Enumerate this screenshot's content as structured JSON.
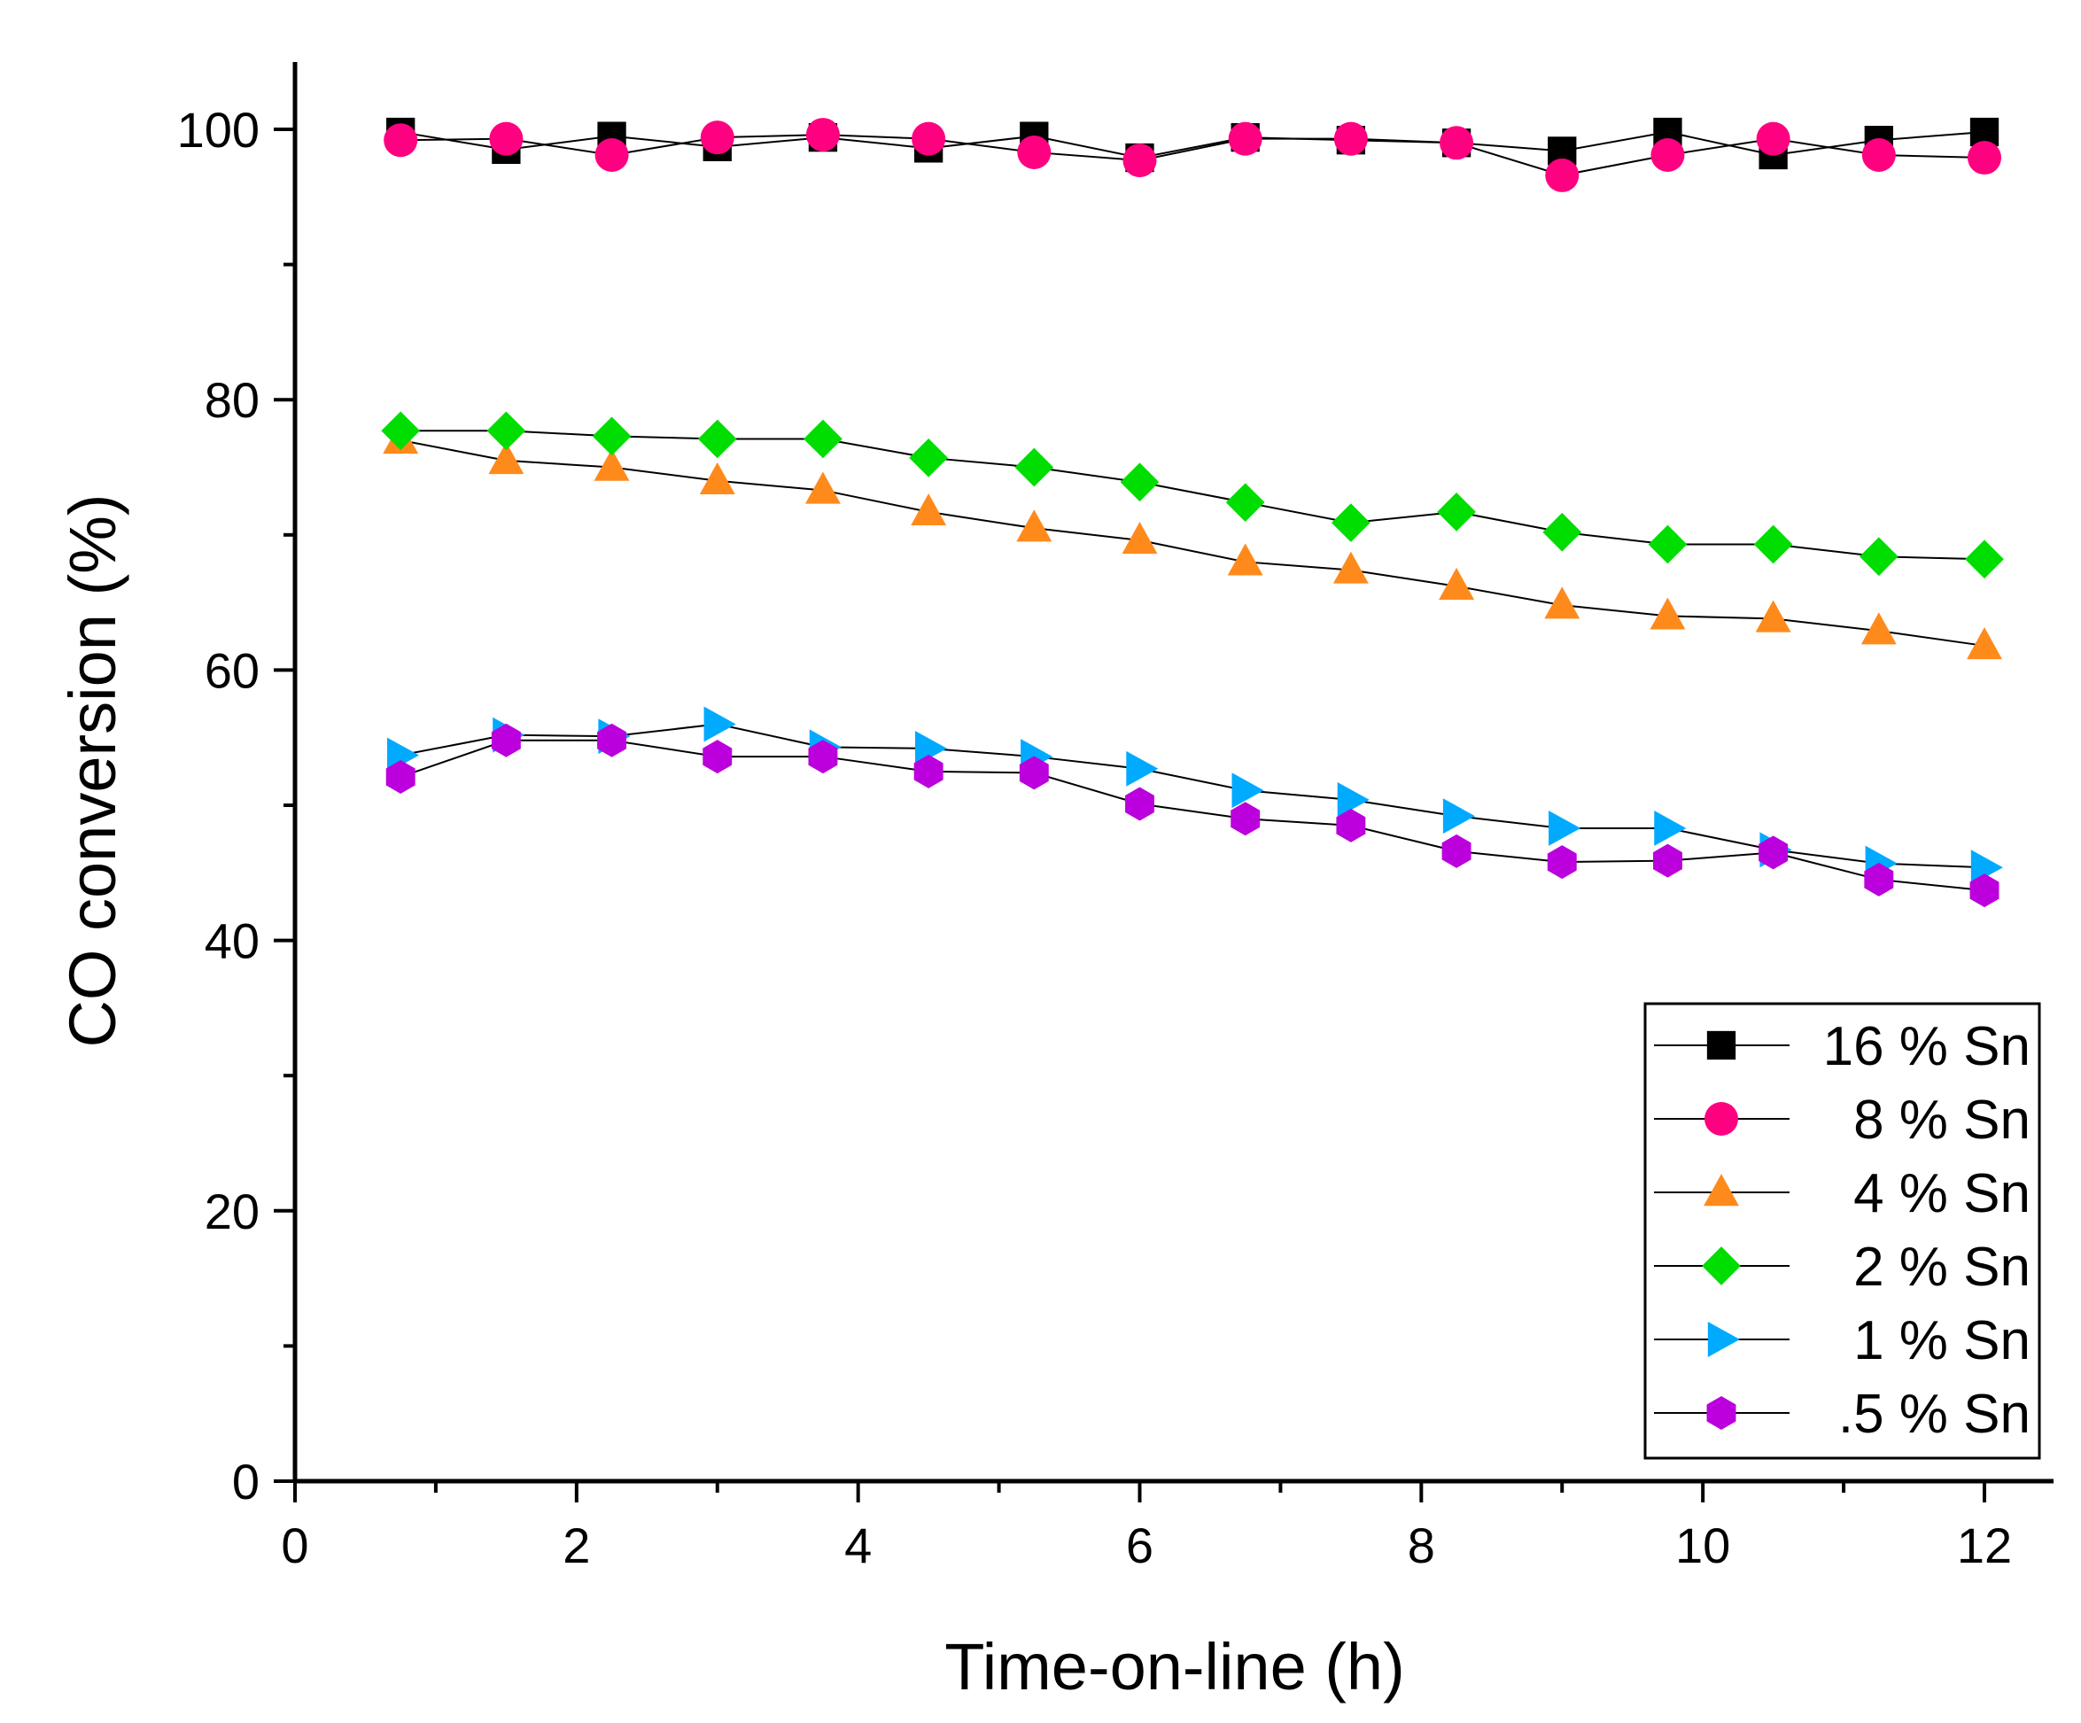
{
  "chart_data": {
    "type": "line",
    "title": "",
    "xlabel": "Time-on-line (h)",
    "ylabel": "CO conversion (%)",
    "xlim": [
      0,
      12.5
    ],
    "ylim": [
      0,
      105
    ],
    "xticks": [
      0,
      2,
      4,
      6,
      8,
      10,
      12
    ],
    "yticks": [
      0,
      20,
      40,
      60,
      80,
      100
    ],
    "x_tick_labels": [
      "0",
      "2",
      "4",
      "6",
      "8",
      "10",
      "12"
    ],
    "y_tick_labels": [
      "0",
      "20",
      "40",
      "60",
      "80",
      "100"
    ],
    "grid": false,
    "legend_position": "bottom-right",
    "x": [
      0.75,
      1.5,
      2.25,
      3.0,
      3.75,
      4.5,
      5.25,
      6.0,
      6.75,
      7.5,
      8.25,
      9.0,
      9.75,
      10.5,
      11.25,
      12.0
    ],
    "series": [
      {
        "name": "16 % Sn",
        "marker": "square",
        "color": "#000000",
        "values": [
          99.8,
          98.5,
          99.5,
          98.7,
          99.4,
          98.6,
          99.5,
          97.9,
          99.4,
          99.2,
          99.0,
          98.4,
          99.8,
          98.1,
          99.2,
          99.8
        ]
      },
      {
        "name": "8 % Sn",
        "marker": "circle",
        "color": "#ff0080",
        "values": [
          99.2,
          99.3,
          98.1,
          99.4,
          99.6,
          99.3,
          98.3,
          97.7,
          99.3,
          99.3,
          99.0,
          96.6,
          98.1,
          99.3,
          98.1,
          97.9
        ]
      },
      {
        "name": "4 % Sn",
        "marker": "triangle-up",
        "color": "#ff8a1c",
        "values": [
          77.0,
          75.5,
          75.0,
          74.0,
          73.3,
          71.7,
          70.5,
          69.6,
          68.0,
          67.4,
          66.2,
          64.8,
          64.0,
          63.8,
          62.9,
          61.8
        ]
      },
      {
        "name": "2 % Sn",
        "marker": "diamond",
        "color": "#00dd00",
        "values": [
          77.7,
          77.7,
          77.3,
          77.1,
          77.1,
          75.7,
          75.0,
          73.9,
          72.4,
          70.9,
          71.7,
          70.2,
          69.3,
          69.3,
          68.4,
          68.2
        ]
      },
      {
        "name": "1 % Sn",
        "marker": "triangle-right",
        "color": "#00aaff",
        "values": [
          53.7,
          55.2,
          55.1,
          56.0,
          54.3,
          54.2,
          53.6,
          52.7,
          51.1,
          50.4,
          49.2,
          48.3,
          48.3,
          46.7,
          45.7,
          45.4
        ]
      },
      {
        "name": ".5 % Sn",
        "marker": "hexagon",
        "color": "#bb00dd",
        "values": [
          52.1,
          54.8,
          54.8,
          53.6,
          53.6,
          52.5,
          52.4,
          50.1,
          49.0,
          48.5,
          46.6,
          45.8,
          45.9,
          46.5,
          44.5,
          43.7
        ]
      }
    ]
  }
}
